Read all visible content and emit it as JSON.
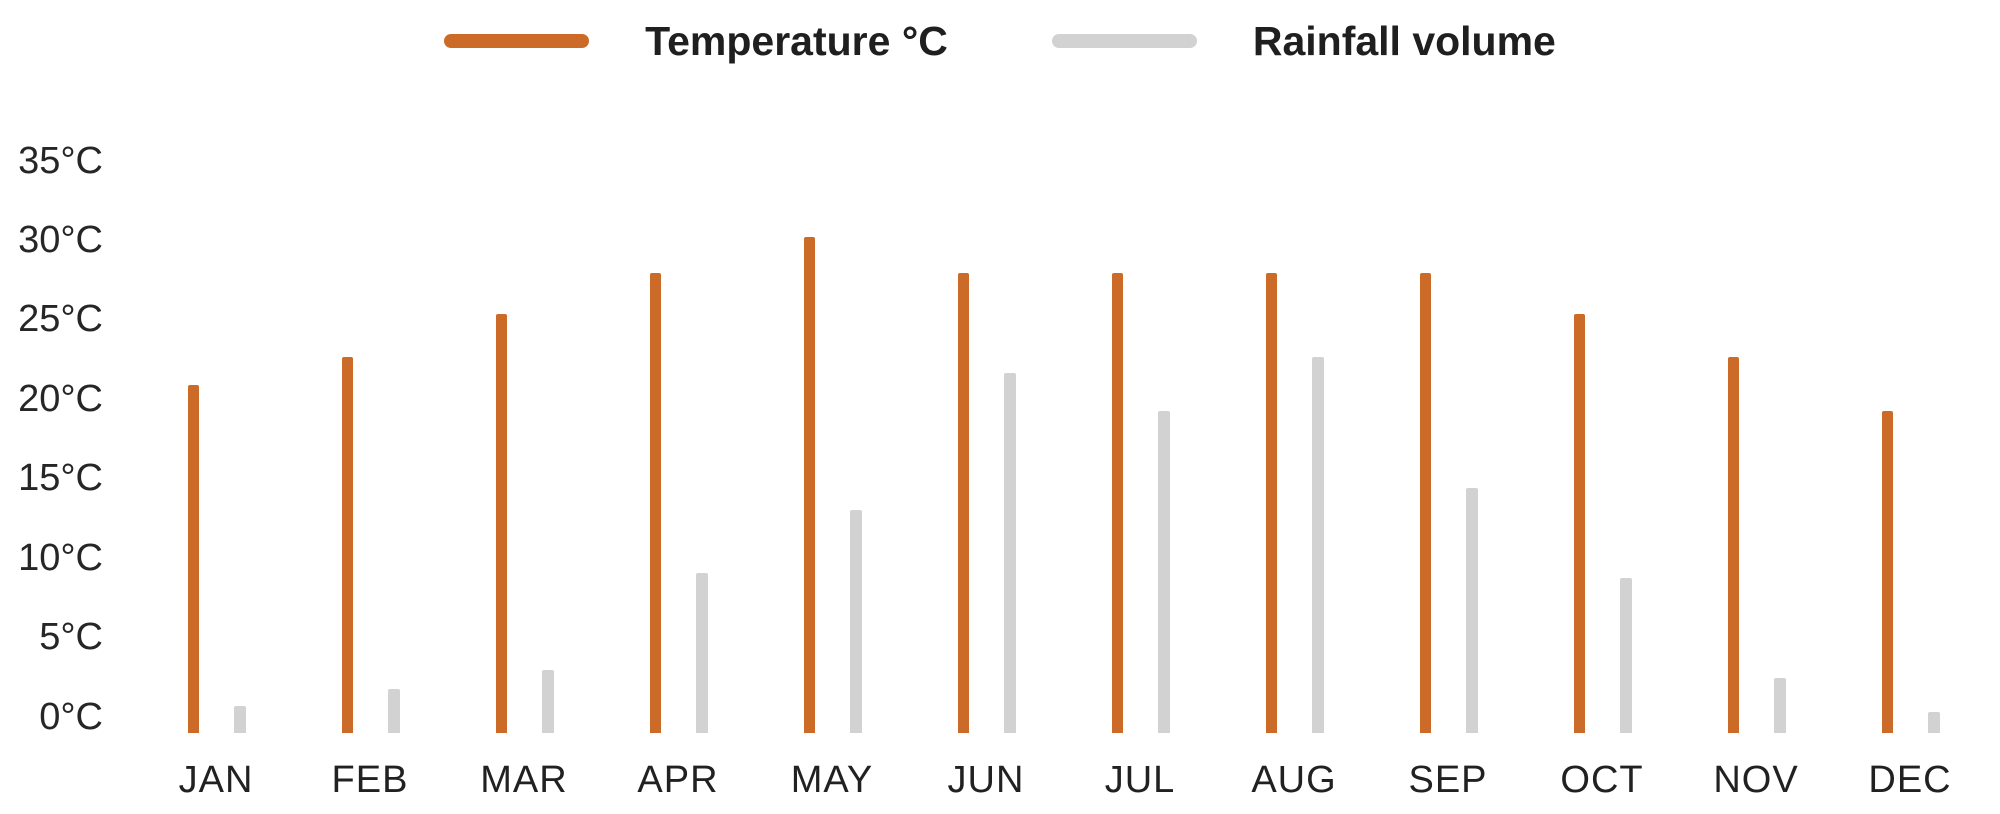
{
  "chart_data": {
    "type": "bar",
    "title": "",
    "categories": [
      "JAN",
      "FEB",
      "MAR",
      "APR",
      "MAY",
      "JUN",
      "JUL",
      "AUG",
      "SEP",
      "OCT",
      "NOV",
      "DEC"
    ],
    "series": [
      {
        "name": "Temperature °C",
        "color": "#CC6A28",
        "values": [
          22,
          23.8,
          26.5,
          29.1,
          31.4,
          29.1,
          29.1,
          29.1,
          29.1,
          26.5,
          23.8,
          20.4
        ]
      },
      {
        "name": "Rainfall volume",
        "color": "#D2D2D2",
        "values": [
          1.7,
          2.8,
          4,
          10.1,
          14.1,
          22.8,
          20.4,
          23.8,
          15.5,
          9.8,
          3.5,
          1.3
        ]
      }
    ],
    "y_axis": {
      "unit": "°C",
      "min": 0,
      "max": 35,
      "step": 5,
      "tick_labels": [
        "0°C",
        "5°C",
        "10°C",
        "15°C",
        "20°C",
        "25°C",
        "30°C",
        "35°C"
      ]
    },
    "legend_position": "top",
    "grid": false
  },
  "colors": {
    "background": "#FFFFFF",
    "text": "#1F1F1F"
  }
}
